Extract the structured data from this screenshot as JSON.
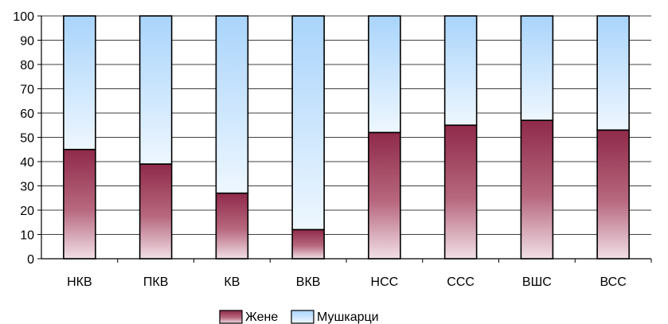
{
  "chart_data": {
    "type": "bar",
    "stacked": true,
    "categories": [
      "НКВ",
      "ПКВ",
      "КВ",
      "ВКВ",
      "НСС",
      "ССС",
      "ВШС",
      "ВСС"
    ],
    "series": [
      {
        "name": "Жене",
        "values": [
          45,
          39,
          27,
          12,
          52,
          55,
          57,
          53
        ],
        "color": "#a0405a"
      },
      {
        "name": "Мушкарци",
        "values": [
          55,
          61,
          73,
          88,
          48,
          45,
          43,
          47
        ],
        "color": "#bfe0ff"
      }
    ],
    "ylim": [
      0,
      100
    ],
    "yticks": [
      0,
      10,
      20,
      30,
      40,
      50,
      60,
      70,
      80,
      90,
      100
    ],
    "grid": true,
    "legend": "bottom-center"
  }
}
